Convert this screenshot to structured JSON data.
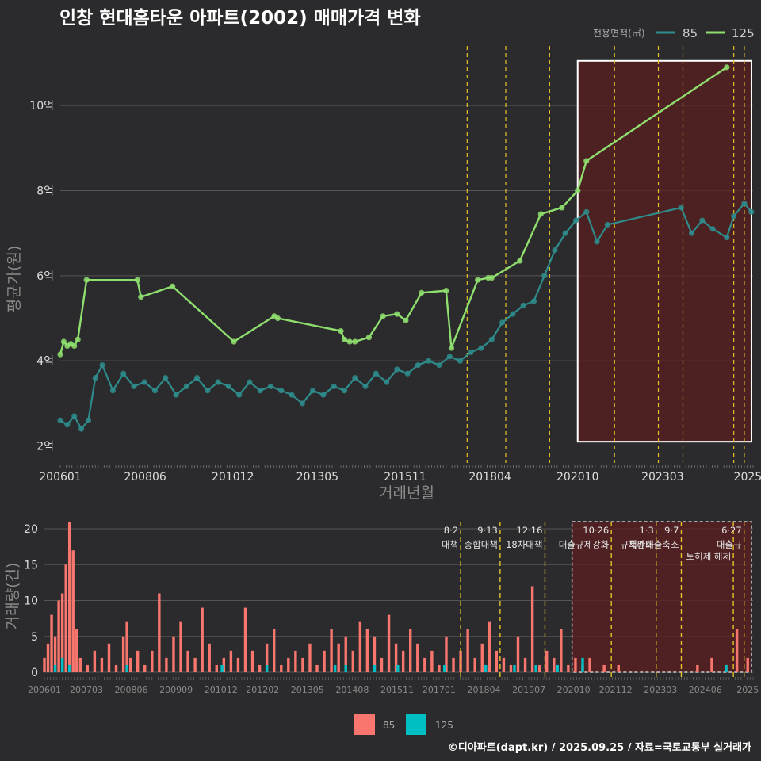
{
  "colors": {
    "background": "#2b2b2d",
    "series_85": "#2f8c8c",
    "series_125": "#8fdf6f",
    "bar_85": "#f8766d",
    "bar_125": "#00bfc4",
    "policy_line": "#e6c229",
    "highlight_fill": "#5a1f1f",
    "grid": "#555555"
  },
  "credit": "©디아파트(dapt.kr) / 2025.09.25 / 자료=국토교통부 실거래가",
  "chart_data": [
    {
      "type": "line",
      "title": "인창 현대홈타운 아파트(2002) 매매가격 변화",
      "xlabel": "거래년월",
      "ylabel": "평균가(원)",
      "legend_title": "전용면적(㎡)",
      "legend_position": "top-right",
      "x_range": [
        2006.0,
        2025.75
      ],
      "ylim": [
        1.6,
        11.4
      ],
      "y_ticks": [
        {
          "v": 2,
          "label": "2억"
        },
        {
          "v": 4,
          "label": "4억"
        },
        {
          "v": 6,
          "label": "6억"
        },
        {
          "v": 8,
          "label": "8억"
        },
        {
          "v": 10,
          "label": "10억"
        }
      ],
      "x_ticks": [
        {
          "v": 2006.0,
          "label": "200601"
        },
        {
          "v": 2008.42,
          "label": "200806"
        },
        {
          "v": 2010.92,
          "label": "201012"
        },
        {
          "v": 2013.33,
          "label": "201305"
        },
        {
          "v": 2015.83,
          "label": "201511"
        },
        {
          "v": 2018.25,
          "label": "201804"
        },
        {
          "v": 2020.75,
          "label": "202010"
        },
        {
          "v": 2023.17,
          "label": "202303"
        },
        {
          "v": 2025.6,
          "label": "2025"
        }
      ],
      "series": [
        {
          "name": "85",
          "x": [
            2006.0,
            2006.2,
            2006.4,
            2006.6,
            2006.8,
            2007.0,
            2007.2,
            2007.5,
            2007.8,
            2008.1,
            2008.4,
            2008.7,
            2009.0,
            2009.3,
            2009.6,
            2009.9,
            2010.2,
            2010.5,
            2010.8,
            2011.1,
            2011.4,
            2011.7,
            2012.0,
            2012.3,
            2012.6,
            2012.9,
            2013.2,
            2013.5,
            2013.8,
            2014.1,
            2014.4,
            2014.7,
            2015.0,
            2015.3,
            2015.6,
            2015.9,
            2016.2,
            2016.5,
            2016.8,
            2017.1,
            2017.4,
            2017.7,
            2018.0,
            2018.3,
            2018.6,
            2018.9,
            2019.2,
            2019.5,
            2019.8,
            2020.1,
            2020.4,
            2020.7,
            2021.0,
            2021.3,
            2021.6,
            2023.7,
            2024.0,
            2024.3,
            2024.6,
            2025.0,
            2025.2,
            2025.5,
            2025.7
          ],
          "values": [
            2.6,
            2.5,
            2.7,
            2.4,
            2.6,
            3.6,
            3.9,
            3.3,
            3.7,
            3.4,
            3.5,
            3.3,
            3.6,
            3.2,
            3.4,
            3.6,
            3.3,
            3.5,
            3.4,
            3.2,
            3.5,
            3.3,
            3.4,
            3.3,
            3.2,
            3.0,
            3.3,
            3.2,
            3.4,
            3.3,
            3.6,
            3.4,
            3.7,
            3.5,
            3.8,
            3.7,
            3.9,
            4.0,
            3.9,
            4.1,
            4.0,
            4.2,
            4.3,
            4.5,
            4.9,
            5.1,
            5.3,
            5.4,
            6.0,
            6.6,
            7.0,
            7.3,
            7.5,
            6.8,
            7.2,
            7.6,
            7.0,
            7.3,
            7.1,
            6.9,
            7.4,
            7.7,
            7.5
          ]
        },
        {
          "name": "125",
          "x": [
            2006.0,
            2006.1,
            2006.2,
            2006.3,
            2006.4,
            2006.5,
            2006.75,
            2008.2,
            2008.3,
            2009.2,
            2010.95,
            2012.1,
            2012.2,
            2014.0,
            2014.1,
            2014.25,
            2014.4,
            2014.8,
            2015.2,
            2015.6,
            2015.85,
            2016.3,
            2017.0,
            2017.15,
            2017.9,
            2018.2,
            2018.3,
            2019.1,
            2019.7,
            2020.3,
            2020.75,
            2021.0,
            2025.0
          ],
          "values": [
            4.15,
            4.45,
            4.35,
            4.4,
            4.35,
            4.5,
            5.9,
            5.9,
            5.5,
            5.75,
            4.45,
            5.05,
            5.0,
            4.7,
            4.5,
            4.45,
            4.45,
            4.55,
            5.05,
            5.1,
            4.95,
            5.6,
            5.65,
            4.3,
            5.9,
            5.95,
            5.95,
            6.35,
            7.45,
            7.6,
            8.0,
            8.7,
            10.9
          ]
        }
      ],
      "annotations": {
        "policy_dates": [
          2017.6,
          2018.7,
          2019.95,
          2021.8,
          2023.05,
          2023.75,
          2025.2,
          2025.5
        ],
        "highlight_x_range": [
          2020.75,
          2025.75
        ]
      }
    },
    {
      "type": "bar",
      "ylabel": "거래량(건)",
      "ylim": [
        0,
        21
      ],
      "y_ticks": [
        0,
        5,
        10,
        15,
        20
      ],
      "x_ticks": [
        {
          "v": 2006.0,
          "label": "200601"
        },
        {
          "v": 2007.17,
          "label": "200703"
        },
        {
          "v": 2008.42,
          "label": "200806"
        },
        {
          "v": 2009.67,
          "label": "200909"
        },
        {
          "v": 2010.92,
          "label": "201012"
        },
        {
          "v": 2012.08,
          "label": "201202"
        },
        {
          "v": 2013.33,
          "label": "201305"
        },
        {
          "v": 2014.58,
          "label": "201408"
        },
        {
          "v": 2015.83,
          "label": "201511"
        },
        {
          "v": 2017.0,
          "label": "201701"
        },
        {
          "v": 2018.25,
          "label": "201804"
        },
        {
          "v": 2019.5,
          "label": "201907"
        },
        {
          "v": 2020.75,
          "label": "202010"
        },
        {
          "v": 2021.92,
          "label": "202112"
        },
        {
          "v": 2023.17,
          "label": "202303"
        },
        {
          "v": 2024.42,
          "label": "202406"
        },
        {
          "v": 2025.6,
          "label": "2025"
        }
      ],
      "legend": [
        "85",
        "125"
      ],
      "legend_position": "bottom",
      "series": [
        {
          "name": "85",
          "x": [
            2006.0,
            2006.1,
            2006.2,
            2006.3,
            2006.4,
            2006.5,
            2006.6,
            2006.7,
            2006.8,
            2006.9,
            2007.0,
            2007.2,
            2007.4,
            2007.6,
            2007.8,
            2008.0,
            2008.2,
            2008.3,
            2008.4,
            2008.6,
            2008.8,
            2009.0,
            2009.2,
            2009.4,
            2009.6,
            2009.8,
            2010.0,
            2010.2,
            2010.4,
            2010.6,
            2010.8,
            2011.0,
            2011.2,
            2011.4,
            2011.6,
            2011.8,
            2012.0,
            2012.2,
            2012.4,
            2012.6,
            2012.8,
            2013.0,
            2013.2,
            2013.4,
            2013.6,
            2013.8,
            2014.0,
            2014.2,
            2014.4,
            2014.6,
            2014.8,
            2015.0,
            2015.2,
            2015.4,
            2015.6,
            2015.8,
            2016.0,
            2016.2,
            2016.4,
            2016.6,
            2016.8,
            2017.0,
            2017.2,
            2017.4,
            2017.6,
            2017.8,
            2018.0,
            2018.2,
            2018.4,
            2018.6,
            2018.8,
            2019.0,
            2019.2,
            2019.4,
            2019.6,
            2019.8,
            2020.0,
            2020.2,
            2020.4,
            2020.6,
            2020.8,
            2021.0,
            2021.2,
            2021.6,
            2022.0,
            2024.2,
            2024.6,
            2025.0,
            2025.3,
            2025.6
          ],
          "values": [
            2,
            4,
            8,
            5,
            10,
            11,
            15,
            21,
            17,
            6,
            2,
            1,
            3,
            2,
            4,
            1,
            5,
            7,
            2,
            3,
            1,
            3,
            11,
            2,
            5,
            7,
            3,
            2,
            9,
            4,
            1,
            2,
            3,
            2,
            9,
            3,
            1,
            4,
            6,
            1,
            2,
            3,
            2,
            4,
            1,
            3,
            6,
            4,
            5,
            3,
            7,
            6,
            5,
            2,
            8,
            4,
            3,
            6,
            4,
            2,
            3,
            1,
            5,
            2,
            3,
            6,
            2,
            4,
            7,
            3,
            2,
            1,
            5,
            2,
            12,
            1,
            3,
            2,
            6,
            1,
            2,
            1,
            2,
            1,
            1,
            1,
            2,
            1,
            6,
            2
          ]
        },
        {
          "name": "125",
          "x": [
            2006.3,
            2006.5,
            2006.7,
            2008.3,
            2010.95,
            2012.2,
            2014.1,
            2014.4,
            2015.2,
            2015.85,
            2017.15,
            2018.3,
            2019.1,
            2019.7,
            2020.3,
            2021.0,
            2025.0
          ],
          "values": [
            1,
            2,
            1,
            1,
            1,
            1,
            1,
            1,
            1,
            1,
            1,
            1,
            1,
            1,
            1,
            2,
            1
          ]
        }
      ],
      "annotations": [
        {
          "x": 2017.6,
          "date": "8·2",
          "text": "대책"
        },
        {
          "x": 2018.7,
          "date": "9·13",
          "text": "종합대책"
        },
        {
          "x": 2019.95,
          "date": "12·16",
          "text": "18차대책"
        },
        {
          "x": 2021.8,
          "date": "10·26",
          "text": "대출규제강화"
        },
        {
          "x": 2023.05,
          "date": "1·3",
          "text": "규제완화"
        },
        {
          "x": 2023.75,
          "date": "9·7",
          "text": "특례대출축소"
        },
        {
          "x": 2025.2,
          "date": "",
          "text": "토허제 해제"
        },
        {
          "x": 2025.5,
          "date": "6·27",
          "text": "대출규"
        }
      ]
    }
  ]
}
